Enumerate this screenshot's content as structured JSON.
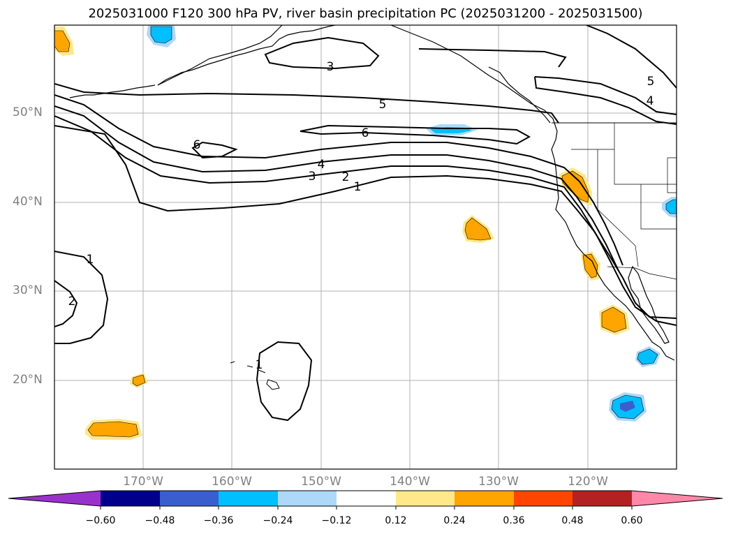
{
  "title": "2025031000 F120 300 hPa PV, river basin precipitation PC (2025031200 - 2025031500)",
  "lat_labels": [
    "50°N",
    "40°N",
    "30°N",
    "20°N"
  ],
  "lon_labels": [
    "170°W",
    "160°W",
    "150°W",
    "140°W",
    "130°W",
    "120°W"
  ],
  "pv_contour_labels": [
    "3",
    "5",
    "6",
    "6",
    "4",
    "3",
    "2",
    "1",
    "5",
    "4",
    "1",
    "2",
    "1"
  ],
  "colorbar": {
    "ticks": [
      "−0.60",
      "−0.48",
      "−0.36",
      "−0.24",
      "−0.12",
      "0.12",
      "0.24",
      "0.36",
      "0.48",
      "0.60"
    ],
    "colors": [
      "#9932cc",
      "#00008b",
      "#3a5fcd",
      "#00bfff",
      "#add8f8",
      "#ffffff",
      "#ffe88a",
      "#ffa500",
      "#ff4500",
      "#b22222",
      "#ff88a8"
    ]
  },
  "colors": {
    "grid": "#b0b0b0",
    "axis_label": "#808080",
    "contour": "#000000"
  }
}
